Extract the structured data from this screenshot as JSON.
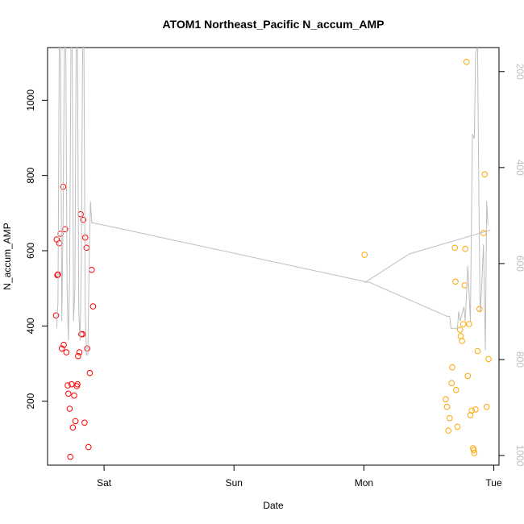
{
  "chart_data": {
    "type": "scatter",
    "title": "ATOM1 Northeast_Pacific N_accum_AMP",
    "xlabel": "Date",
    "ylabel": "N_accum_AMP",
    "x_ticks": [
      {
        "label": "Sat",
        "day": 1
      },
      {
        "label": "Sun",
        "day": 2
      },
      {
        "label": "Mon",
        "day": 3
      },
      {
        "label": "Tue",
        "day": 4
      }
    ],
    "xlim": [
      0.565,
      4.04
    ],
    "ylim": [
      30,
      1140
    ],
    "y_ticks": [
      200,
      400,
      600,
      800,
      1000
    ],
    "right_axis": {
      "ylim": [
        1020,
        150
      ],
      "ticks": [
        200,
        400,
        600,
        800,
        1000
      ],
      "color": "#bebebe"
    },
    "grid": false,
    "series": [
      {
        "marker": "open-circle",
        "color": "#ff0000",
        "points": [
          [
            0.63,
            428
          ],
          [
            0.635,
            630
          ],
          [
            0.64,
            535
          ],
          [
            0.645,
            537
          ],
          [
            0.655,
            620
          ],
          [
            0.665,
            645
          ],
          [
            0.675,
            340
          ],
          [
            0.685,
            770
          ],
          [
            0.69,
            350
          ],
          [
            0.7,
            657
          ],
          [
            0.71,
            330
          ],
          [
            0.72,
            242
          ],
          [
            0.725,
            220
          ],
          [
            0.735,
            180
          ],
          [
            0.74,
            52
          ],
          [
            0.75,
            245
          ],
          [
            0.76,
            130
          ],
          [
            0.77,
            215
          ],
          [
            0.78,
            147
          ],
          [
            0.79,
            240
          ],
          [
            0.795,
            245
          ],
          [
            0.8,
            320
          ],
          [
            0.81,
            330
          ],
          [
            0.82,
            697
          ],
          [
            0.825,
            378
          ],
          [
            0.835,
            378
          ],
          [
            0.84,
            682
          ],
          [
            0.85,
            143
          ],
          [
            0.855,
            635
          ],
          [
            0.865,
            608
          ],
          [
            0.87,
            340
          ],
          [
            0.88,
            78
          ],
          [
            0.89,
            275
          ],
          [
            0.905,
            549
          ],
          [
            0.915,
            452
          ]
        ]
      },
      {
        "marker": "open-circle",
        "color": "#ffa500",
        "points": [
          [
            3.005,
            589
          ],
          [
            3.63,
            205
          ],
          [
            3.64,
            185
          ],
          [
            3.65,
            122
          ],
          [
            3.66,
            155
          ],
          [
            3.675,
            248
          ],
          [
            3.68,
            290
          ],
          [
            3.7,
            608
          ],
          [
            3.705,
            518
          ],
          [
            3.71,
            230
          ],
          [
            3.72,
            132
          ],
          [
            3.74,
            390
          ],
          [
            3.745,
            373
          ],
          [
            3.755,
            360
          ],
          [
            3.765,
            405
          ],
          [
            3.775,
            508
          ],
          [
            3.78,
            605
          ],
          [
            3.79,
            1102
          ],
          [
            3.8,
            267
          ],
          [
            3.81,
            405
          ],
          [
            3.82,
            163
          ],
          [
            3.83,
            175
          ],
          [
            3.84,
            75
          ],
          [
            3.845,
            70
          ],
          [
            3.85,
            62
          ],
          [
            3.86,
            178
          ],
          [
            3.875,
            333
          ],
          [
            3.89,
            445
          ],
          [
            3.92,
            647
          ],
          [
            3.93,
            803
          ],
          [
            3.945,
            185
          ],
          [
            3.96,
            312
          ]
        ]
      },
      {
        "name": "",
        "axis": "right",
        "marker": "line",
        "color": "#bebebe",
        "points": [
          [
            0.635,
            735
          ],
          [
            0.645,
            680
          ],
          [
            0.655,
            150
          ],
          [
            0.665,
            150
          ],
          [
            0.675,
            720
          ],
          [
            0.685,
            500
          ],
          [
            0.695,
            150
          ],
          [
            0.705,
            150
          ],
          [
            0.715,
            650
          ],
          [
            0.725,
            760
          ],
          [
            0.735,
            620
          ],
          [
            0.745,
            150
          ],
          [
            0.755,
            150
          ],
          [
            0.765,
            720
          ],
          [
            0.775,
            660
          ],
          [
            0.785,
            150
          ],
          [
            0.795,
            150
          ],
          [
            0.805,
            700
          ],
          [
            0.815,
            760
          ],
          [
            0.825,
            600
          ],
          [
            0.835,
            150
          ],
          [
            0.845,
            150
          ],
          [
            0.855,
            700
          ],
          [
            0.865,
            790
          ],
          [
            0.875,
            790
          ],
          [
            0.885,
            600
          ],
          [
            0.895,
            470
          ],
          [
            0.905,
            515
          ],
          [
            1.0,
            520
          ],
          [
            3.05,
            640
          ],
          [
            3.64,
            710
          ],
          [
            3.66,
            710
          ],
          [
            3.67,
            735
          ],
          [
            3.72,
            735
          ],
          [
            3.73,
            700
          ],
          [
            3.74,
            720
          ],
          [
            3.77,
            690
          ],
          [
            3.78,
            720
          ],
          [
            3.8,
            605
          ],
          [
            3.82,
            720
          ],
          [
            3.835,
            330
          ],
          [
            3.85,
            340
          ],
          [
            3.86,
            160
          ],
          [
            3.875,
            150
          ],
          [
            3.885,
            460
          ],
          [
            3.895,
            700
          ],
          [
            3.905,
            660
          ],
          [
            3.92,
            560
          ],
          [
            3.935,
            780
          ],
          [
            3.945,
            470
          ],
          [
            3.955,
            520
          ]
        ]
      },
      {
        "name": "",
        "axis": "right",
        "marker": "line",
        "color": "#bebebe",
        "points": [
          [
            3.005,
            640
          ],
          [
            3.35,
            580
          ],
          [
            3.975,
            530
          ]
        ]
      }
    ]
  }
}
